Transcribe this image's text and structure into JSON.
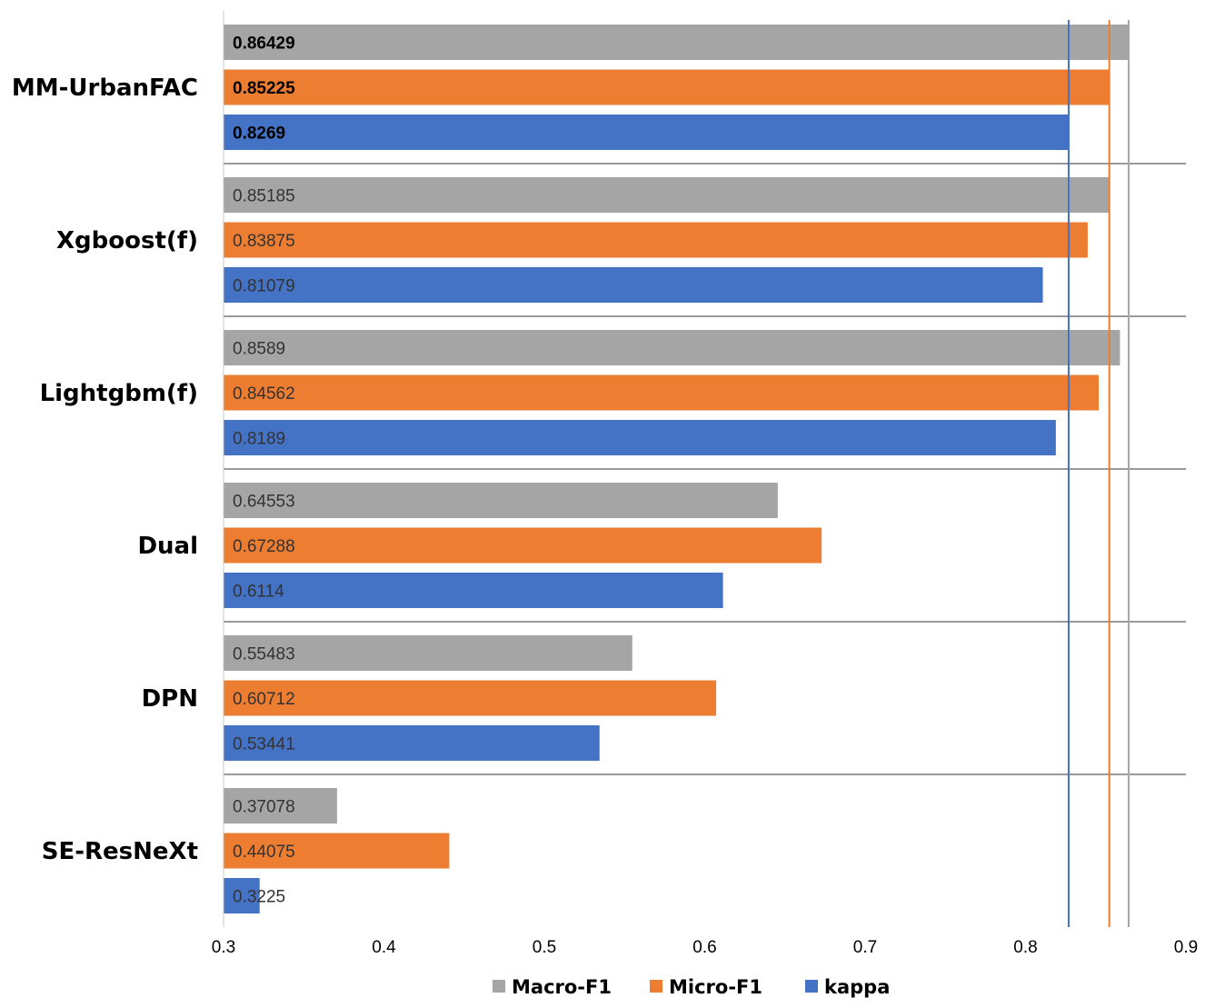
{
  "chart_data": {
    "type": "bar",
    "orientation": "horizontal",
    "title": "",
    "xlabel": "",
    "ylabel": "",
    "xlim": [
      0.3,
      0.9
    ],
    "xticks": [
      "0.3",
      "0.4",
      "0.5",
      "0.6",
      "0.7",
      "0.8",
      "0.9"
    ],
    "categories": [
      "MM-UrbanFAC",
      "Xgboost(f)",
      "Lightgbm(f)",
      "Dual",
      "DPN",
      "SE-ResNeXt"
    ],
    "series": [
      {
        "name": "Macro-F1",
        "color": "#a5a5a5",
        "values": [
          0.86429,
          0.85185,
          0.8589,
          0.64553,
          0.55483,
          0.37078
        ],
        "labels": [
          "0.86429",
          "0.85185",
          "0.8589",
          "0.64553",
          "0.55483",
          "0.37078"
        ]
      },
      {
        "name": "Micro-F1",
        "color": "#ed7d31",
        "values": [
          0.85225,
          0.83875,
          0.84562,
          0.67288,
          0.60712,
          0.44075
        ],
        "labels": [
          "0.85225",
          "0.83875",
          "0.84562",
          "0.67288",
          "0.60712",
          "0.44075"
        ]
      },
      {
        "name": "kappa",
        "color": "#4472c4",
        "values": [
          0.8269,
          0.81079,
          0.8189,
          0.6114,
          0.53441,
          0.3225
        ],
        "labels": [
          "0.8269",
          "0.81079",
          "0.8189",
          "0.6114",
          "0.53441",
          "0.3225"
        ]
      }
    ],
    "reference_lines": [
      {
        "series": "Macro-F1",
        "value": 0.86429,
        "color": "#a5a5a5"
      },
      {
        "series": "Micro-F1",
        "value": 0.85225,
        "color": "#ed7d31"
      },
      {
        "series": "kappa",
        "value": 0.8269,
        "color": "#4472c4"
      }
    ],
    "highlight_category": "MM-UrbanFAC",
    "legend_position": "bottom",
    "grid": false
  }
}
